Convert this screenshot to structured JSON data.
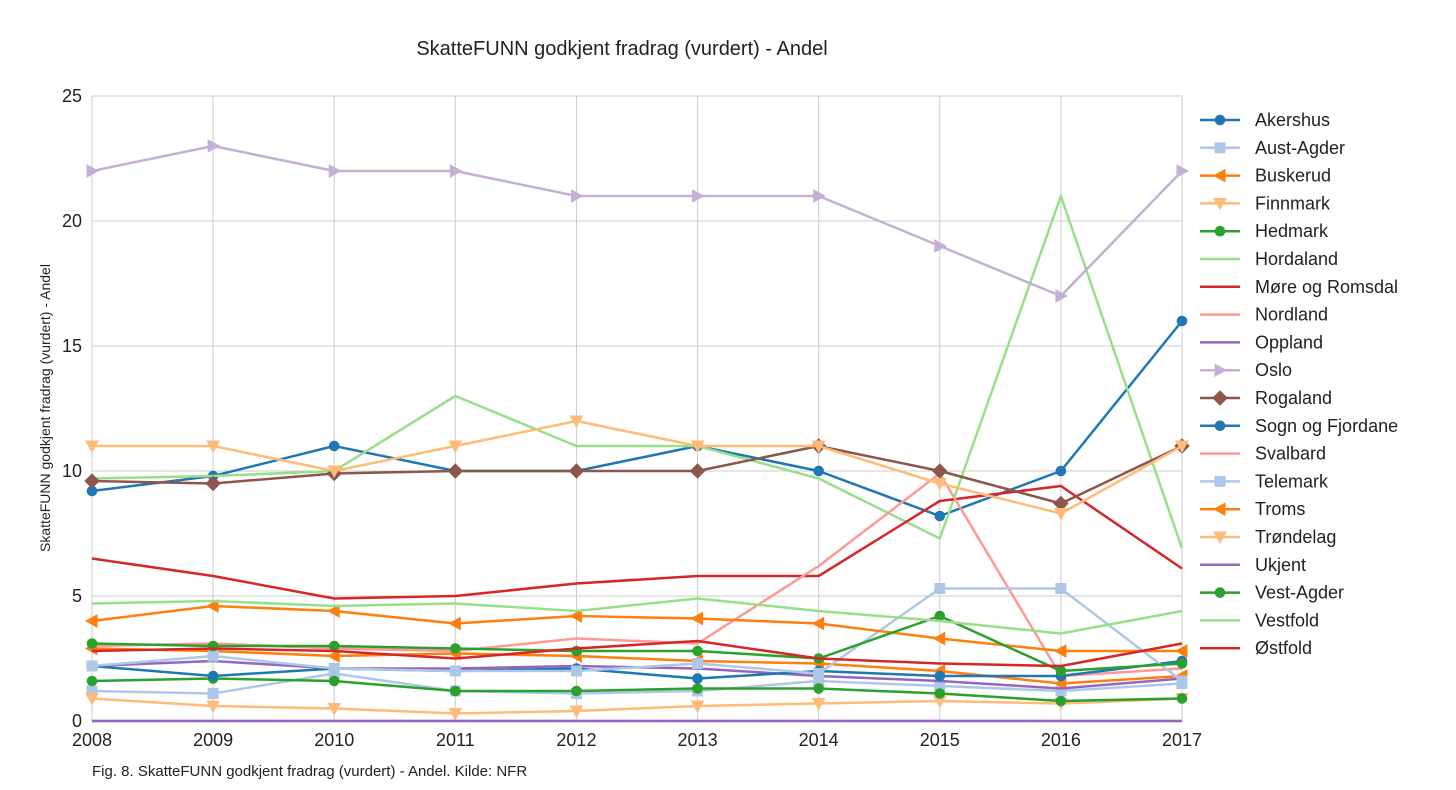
{
  "chart_data": {
    "type": "line",
    "title": "SkatteFUNN godkjent fradrag (vurdert) - Andel",
    "xlabel": "",
    "ylabel": "SkatteFUNN godkjent fradrag (vurdert) - Andel",
    "caption": "Fig. 8. SkatteFUNN godkjent fradrag (vurdert) - Andel. Kilde: NFR",
    "x": [
      "2008",
      "2009",
      "2010",
      "2011",
      "2012",
      "2013",
      "2014",
      "2015",
      "2016",
      "2017"
    ],
    "xlim": [
      2008,
      2017
    ],
    "ylim": [
      0,
      25
    ],
    "yticks": [
      "0",
      "5",
      "10",
      "15",
      "20",
      "25"
    ],
    "grid": true,
    "legend_position": "right",
    "series": [
      {
        "name": "Akershus",
        "color": "#1f77b4",
        "marker": "circle",
        "values": [
          9.2,
          9.8,
          11,
          10,
          10,
          11,
          10,
          8.2,
          10,
          16
        ]
      },
      {
        "name": "Aust-Agder",
        "color": "#aec7e8",
        "marker": "square",
        "values": [
          1.2,
          1.1,
          1.9,
          1.2,
          1.1,
          1.2,
          1.6,
          1.4,
          1.2,
          1.5
        ]
      },
      {
        "name": "Buskerud",
        "color": "#ff7f0e",
        "marker": "triangle-left",
        "values": [
          2.9,
          2.8,
          2.6,
          2.7,
          2.6,
          2.4,
          2.3,
          2.0,
          1.5,
          1.8
        ]
      },
      {
        "name": "Finnmark",
        "color": "#ffbb78",
        "marker": "triangle-down",
        "values": [
          0.9,
          0.6,
          0.5,
          0.3,
          0.4,
          0.6,
          0.7,
          0.8,
          0.7,
          0.9
        ]
      },
      {
        "name": "Hedmark",
        "color": "#2ca02c",
        "marker": "circle",
        "values": [
          1.6,
          1.7,
          1.6,
          1.2,
          1.2,
          1.3,
          1.3,
          1.1,
          0.8,
          0.9
        ]
      },
      {
        "name": "Hordaland",
        "color": "#98df8a",
        "marker": "none",
        "values": [
          9.7,
          9.8,
          10,
          13,
          11,
          11,
          9.7,
          7.3,
          21,
          6.9
        ]
      },
      {
        "name": "Møre og Romsdal",
        "color": "#d62728",
        "marker": "none",
        "values": [
          6.5,
          5.8,
          4.9,
          5.0,
          5.5,
          5.8,
          5.8,
          8.8,
          9.4,
          6.1
        ]
      },
      {
        "name": "Nordland",
        "color": "#ff9896",
        "marker": "none",
        "values": [
          3.0,
          3.1,
          2.9,
          2.8,
          3.3,
          3.1,
          6.2,
          9.9,
          1.8,
          2.1
        ]
      },
      {
        "name": "Oppland",
        "color": "#9467bd",
        "marker": "none",
        "values": [
          2.2,
          2.4,
          2.1,
          2.1,
          2.2,
          2.1,
          1.8,
          1.6,
          1.3,
          1.7
        ]
      },
      {
        "name": "Oslo",
        "color": "#c5b0d5",
        "marker": "triangle-right",
        "values": [
          22,
          23,
          22,
          22,
          21,
          21,
          21,
          19,
          17,
          22
        ]
      },
      {
        "name": "Rogaland",
        "color": "#8c564b",
        "marker": "diamond",
        "values": [
          9.6,
          9.5,
          9.9,
          10,
          10,
          10,
          11,
          10,
          8.7,
          11
        ]
      },
      {
        "name": "Sogn og Fjordane",
        "color": "#1f77b4",
        "marker": "circle",
        "values": [
          2.2,
          1.8,
          2.1,
          2.0,
          2.1,
          1.7,
          2.0,
          1.8,
          1.8,
          2.4
        ]
      },
      {
        "name": "Svalbard",
        "color": "#ff9896",
        "marker": "none",
        "values": [
          0,
          0,
          0,
          0,
          0,
          0,
          0,
          0,
          0,
          0
        ]
      },
      {
        "name": "Telemark",
        "color": "#aec7e8",
        "marker": "square",
        "values": [
          2.2,
          2.6,
          2.1,
          2.0,
          2.0,
          2.3,
          1.9,
          5.3,
          5.3,
          1.6
        ]
      },
      {
        "name": "Troms",
        "color": "#ff7f0e",
        "marker": "triangle-left",
        "values": [
          4.0,
          4.6,
          4.4,
          3.9,
          4.2,
          4.1,
          3.9,
          3.3,
          2.8,
          2.8
        ]
      },
      {
        "name": "Trøndelag",
        "color": "#ffbb78",
        "marker": "triangle-down",
        "values": [
          11,
          11,
          10,
          11,
          12,
          11,
          11,
          9.5,
          8.3,
          11
        ]
      },
      {
        "name": "Ukjent",
        "color": "#9467bd",
        "marker": "none",
        "values": [
          0,
          0,
          0,
          0,
          0,
          0,
          0,
          0,
          0,
          0
        ]
      },
      {
        "name": "Vest-Agder",
        "color": "#2ca02c",
        "marker": "circle",
        "values": [
          3.1,
          3.0,
          3.0,
          2.9,
          2.8,
          2.8,
          2.5,
          4.2,
          2.0,
          2.3
        ]
      },
      {
        "name": "Vestfold",
        "color": "#98df8a",
        "marker": "none",
        "values": [
          4.7,
          4.8,
          4.6,
          4.7,
          4.4,
          4.9,
          4.4,
          4.0,
          3.5,
          4.4
        ]
      },
      {
        "name": "Østfold",
        "color": "#d62728",
        "marker": "none",
        "values": [
          2.8,
          2.9,
          2.8,
          2.5,
          2.9,
          3.2,
          2.5,
          2.3,
          2.2,
          3.1
        ]
      }
    ]
  }
}
